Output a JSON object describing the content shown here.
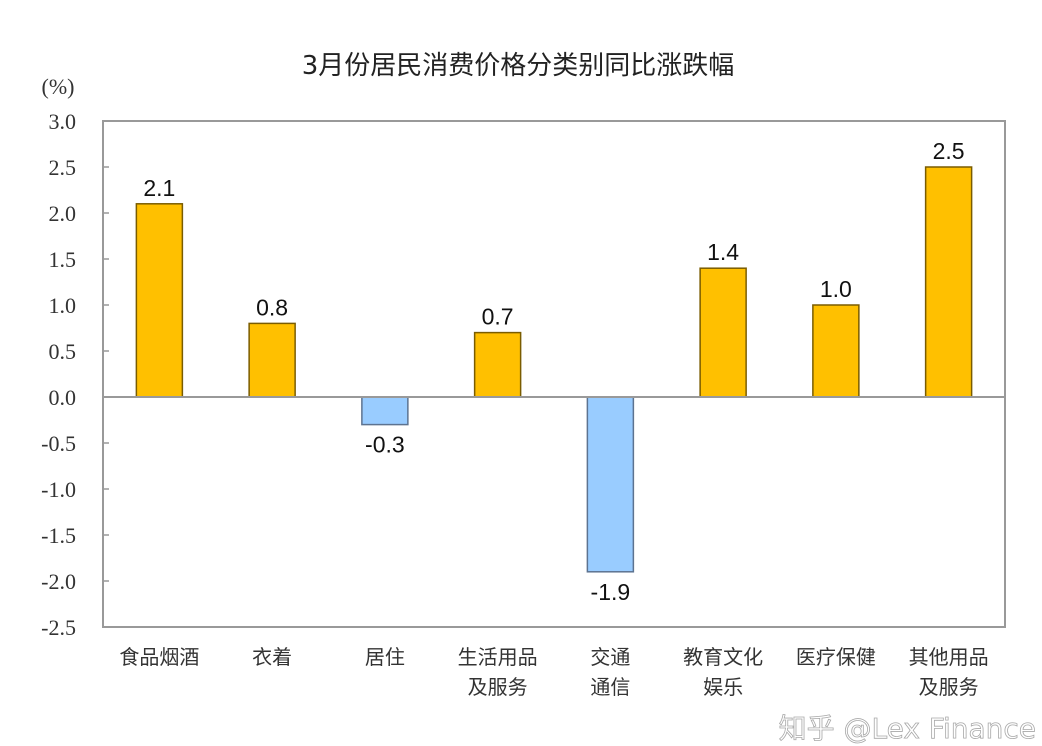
{
  "chart_data": {
    "type": "bar",
    "title": "3月份居民消费价格分类别同比涨跌幅",
    "ylabel": "(%)",
    "xlabel": "",
    "ylim": [
      -2.5,
      3.0
    ],
    "yticks": [
      "3.0",
      "2.5",
      "2.0",
      "1.5",
      "1.0",
      "0.5",
      "0.0",
      "-0.5",
      "-1.0",
      "-1.5",
      "-2.0",
      "-2.5"
    ],
    "categories": [
      [
        "食品烟酒"
      ],
      [
        "衣着"
      ],
      [
        "居住"
      ],
      [
        "生活用品",
        "及服务"
      ],
      [
        "交通",
        "通信"
      ],
      [
        "教育文化",
        "娱乐"
      ],
      [
        "医疗保健"
      ],
      [
        "其他用品",
        "及服务"
      ]
    ],
    "values": [
      2.1,
      0.8,
      -0.3,
      0.7,
      -1.9,
      1.4,
      1.0,
      2.5
    ],
    "data_labels": [
      "2.1",
      "0.8",
      "-0.3",
      "0.7",
      "-1.9",
      "1.4",
      "1.0",
      "2.5"
    ],
    "colors": {
      "positive": "#FFC000",
      "negative": "#99CCFF",
      "positive_border": "#7a5c00",
      "negative_border": "#5d7390"
    },
    "grid": false,
    "legend": "none"
  },
  "watermark": "知乎 @Lex Finance"
}
